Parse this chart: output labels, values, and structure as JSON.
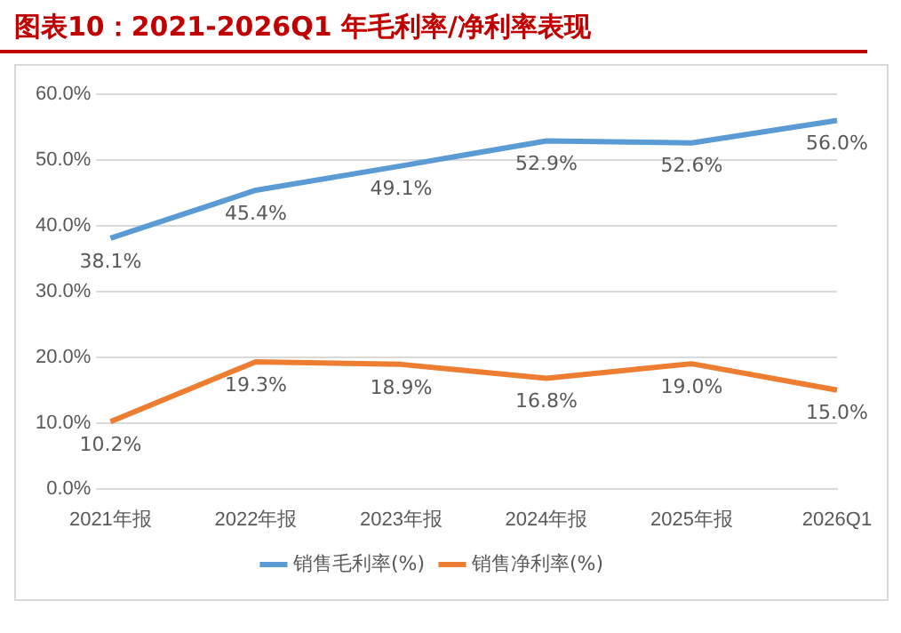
{
  "chart_data": {
    "type": "line",
    "title": "图表10：2021-2026Q1 年毛利率/净利率表现",
    "categories": [
      "2021年报",
      "2022年报",
      "2023年报",
      "2024年报",
      "2025年报",
      "2026Q1"
    ],
    "series": [
      {
        "name": "销售毛利率(%)",
        "color": "#5b9bd5",
        "values": [
          38.1,
          45.4,
          49.1,
          52.9,
          52.6,
          56.0
        ],
        "value_labels": [
          "38.1%",
          "45.4%",
          "49.1%",
          "52.9%",
          "52.6%",
          "56.0%"
        ]
      },
      {
        "name": "销售净利率(%)",
        "color": "#ed7d31",
        "values": [
          10.2,
          19.3,
          18.9,
          16.8,
          19.0,
          15.0
        ],
        "value_labels": [
          "10.2%",
          "19.3%",
          "18.9%",
          "16.8%",
          "19.0%",
          "15.0%"
        ]
      }
    ],
    "ylim": [
      0,
      60
    ],
    "yticks": [
      {
        "value": 0,
        "label": "0.0%"
      },
      {
        "value": 10,
        "label": "10.0%"
      },
      {
        "value": 20,
        "label": "20.0%"
      },
      {
        "value": 30,
        "label": "30.0%"
      },
      {
        "value": 40,
        "label": "40.0%"
      },
      {
        "value": 50,
        "label": "50.0%"
      },
      {
        "value": 60,
        "label": "60.0%"
      }
    ],
    "grid": "y",
    "legend": "bottom",
    "marker": "none",
    "line_style": "solid"
  }
}
